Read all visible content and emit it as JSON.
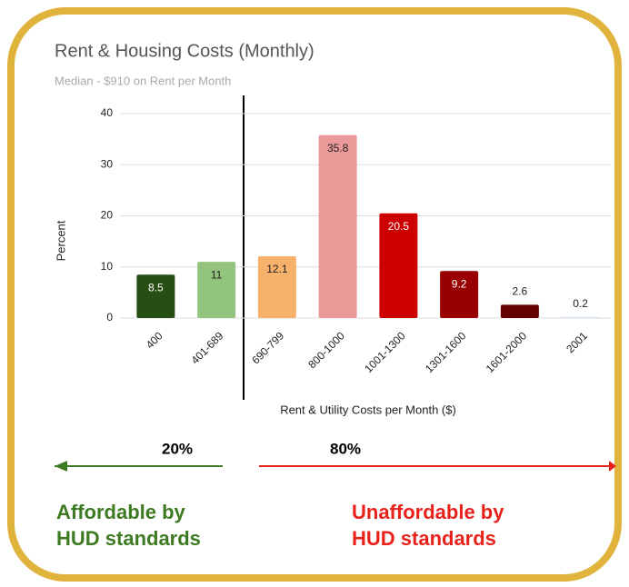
{
  "chart_data": {
    "type": "bar",
    "title": "Rent & Housing Costs (Monthly)",
    "subtitle": "Median - $910 on Rent per Month",
    "x_label": "Rent & Utility Costs per Month ($)",
    "y_label": "Percent",
    "categories": [
      "400",
      "401-689",
      "690-799",
      "800-1000",
      "1001-1300",
      "1301-1600",
      "1601-2000",
      "2001"
    ],
    "values": [
      8.5,
      11,
      12.1,
      35.8,
      20.5,
      9.2,
      2.6,
      0.2
    ],
    "colors": [
      "#274e13",
      "#93c47d",
      "#f6b26b",
      "#ea9999",
      "#cc0000",
      "#990000",
      "#660000",
      "#cfe2f3"
    ],
    "ylim": [
      0,
      40
    ],
    "yticks": [
      0,
      10,
      20,
      30,
      40
    ],
    "grid": true,
    "annotations": [
      {
        "text": "20%",
        "color": "#000000"
      },
      {
        "text": "80%",
        "color": "#000000"
      },
      {
        "lines": [
          "Affordable by",
          "HUD standards"
        ],
        "color": "#3d7a21"
      },
      {
        "lines": [
          "Unaffordable by",
          "HUD standards"
        ],
        "color": "#e8221b"
      }
    ]
  }
}
